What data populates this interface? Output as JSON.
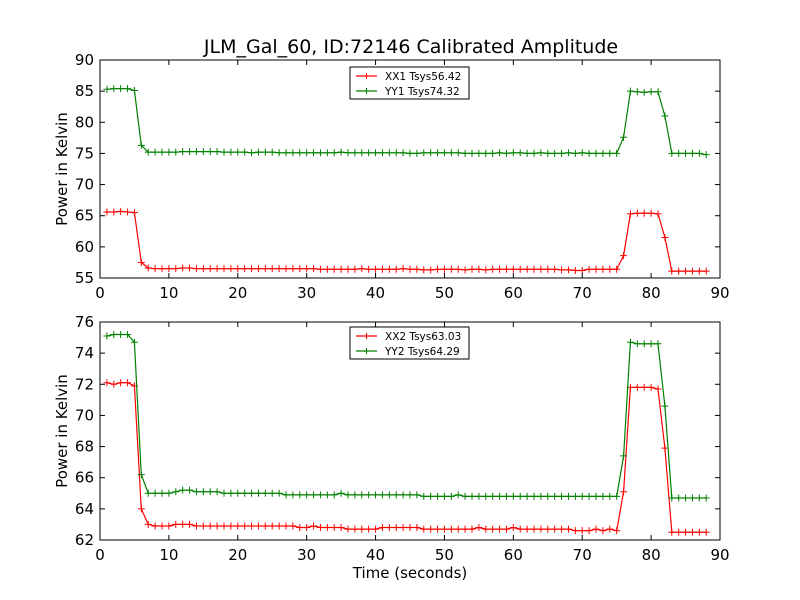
{
  "figure": {
    "title": "JLM_Gal_60, ID:72146 Calibrated Amplitude"
  },
  "chart_data": [
    {
      "type": "line",
      "title": "JLM_Gal_60, ID:72146 Calibrated Amplitude",
      "xlabel": "",
      "ylabel": "Power in Kelvin",
      "xlim": [
        0,
        90
      ],
      "ylim": [
        55,
        90
      ],
      "xticks": [
        0,
        10,
        20,
        30,
        40,
        50,
        60,
        70,
        80,
        90
      ],
      "yticks": [
        55,
        60,
        65,
        70,
        75,
        80,
        85,
        90
      ],
      "legend_position": "top-center",
      "grid": false,
      "x": [
        1,
        2,
        3,
        4,
        5,
        6,
        7,
        8,
        9,
        10,
        11,
        12,
        13,
        14,
        15,
        16,
        17,
        18,
        19,
        20,
        21,
        22,
        23,
        24,
        25,
        26,
        27,
        28,
        29,
        30,
        31,
        32,
        33,
        34,
        35,
        36,
        37,
        38,
        39,
        40,
        41,
        42,
        43,
        44,
        45,
        46,
        47,
        48,
        49,
        50,
        51,
        52,
        53,
        54,
        55,
        56,
        57,
        58,
        59,
        60,
        61,
        62,
        63,
        64,
        65,
        66,
        67,
        68,
        69,
        70,
        71,
        72,
        73,
        74,
        75,
        76,
        77,
        78,
        79,
        80,
        81,
        82,
        83,
        84,
        85,
        86,
        87,
        88
      ],
      "series": [
        {
          "name": "XX1 Tsys56.42",
          "color": "#ff0000",
          "values": [
            65.6,
            65.6,
            65.7,
            65.6,
            65.5,
            57.5,
            56.6,
            56.5,
            56.5,
            56.5,
            56.5,
            56.6,
            56.6,
            56.5,
            56.5,
            56.5,
            56.5,
            56.5,
            56.5,
            56.5,
            56.5,
            56.5,
            56.5,
            56.5,
            56.5,
            56.5,
            56.5,
            56.5,
            56.5,
            56.5,
            56.5,
            56.4,
            56.4,
            56.4,
            56.4,
            56.4,
            56.4,
            56.5,
            56.4,
            56.4,
            56.4,
            56.4,
            56.4,
            56.5,
            56.4,
            56.4,
            56.3,
            56.3,
            56.4,
            56.4,
            56.4,
            56.4,
            56.3,
            56.4,
            56.4,
            56.3,
            56.4,
            56.4,
            56.4,
            56.4,
            56.4,
            56.4,
            56.4,
            56.4,
            56.4,
            56.4,
            56.3,
            56.3,
            56.2,
            56.2,
            56.4,
            56.4,
            56.4,
            56.4,
            56.4,
            58.6,
            65.3,
            65.4,
            65.4,
            65.4,
            65.3,
            61.5,
            56.1,
            56.1,
            56.1,
            56.1,
            56.1,
            56.1
          ]
        },
        {
          "name": "YY1 Tsys74.32",
          "color": "#008000",
          "values": [
            85.3,
            85.4,
            85.4,
            85.4,
            85.1,
            76.3,
            75.2,
            75.2,
            75.2,
            75.2,
            75.2,
            75.3,
            75.3,
            75.3,
            75.3,
            75.3,
            75.3,
            75.2,
            75.2,
            75.2,
            75.2,
            75.1,
            75.2,
            75.2,
            75.2,
            75.1,
            75.1,
            75.1,
            75.1,
            75.1,
            75.1,
            75.1,
            75.1,
            75.1,
            75.2,
            75.1,
            75.1,
            75.1,
            75.1,
            75.1,
            75.1,
            75.1,
            75.1,
            75.1,
            75.0,
            75.0,
            75.1,
            75.1,
            75.1,
            75.1,
            75.1,
            75.1,
            75.0,
            75.0,
            75.0,
            75.0,
            75.0,
            75.1,
            75.0,
            75.1,
            75.1,
            75.0,
            75.0,
            75.1,
            75.0,
            75.0,
            75.0,
            75.1,
            75.0,
            75.1,
            75.0,
            75.0,
            75.0,
            75.0,
            75.0,
            77.6,
            85.0,
            84.9,
            84.8,
            84.9,
            84.9,
            81.0,
            75.0,
            75.0,
            75.0,
            75.0,
            75.0,
            74.8
          ]
        }
      ]
    },
    {
      "type": "line",
      "title": "",
      "xlabel": "Time (seconds)",
      "ylabel": "Power in Kelvin",
      "xlim": [
        0,
        90
      ],
      "ylim": [
        62,
        76
      ],
      "xticks": [
        0,
        10,
        20,
        30,
        40,
        50,
        60,
        70,
        80,
        90
      ],
      "yticks": [
        62,
        64,
        66,
        68,
        70,
        72,
        74,
        76
      ],
      "legend_position": "top-center",
      "grid": false,
      "x": [
        1,
        2,
        3,
        4,
        5,
        6,
        7,
        8,
        9,
        10,
        11,
        12,
        13,
        14,
        15,
        16,
        17,
        18,
        19,
        20,
        21,
        22,
        23,
        24,
        25,
        26,
        27,
        28,
        29,
        30,
        31,
        32,
        33,
        34,
        35,
        36,
        37,
        38,
        39,
        40,
        41,
        42,
        43,
        44,
        45,
        46,
        47,
        48,
        49,
        50,
        51,
        52,
        53,
        54,
        55,
        56,
        57,
        58,
        59,
        60,
        61,
        62,
        63,
        64,
        65,
        66,
        67,
        68,
        69,
        70,
        71,
        72,
        73,
        74,
        75,
        76,
        77,
        78,
        79,
        80,
        81,
        82,
        83,
        84,
        85,
        86,
        87,
        88
      ],
      "series": [
        {
          "name": "XX2 Tsys63.03",
          "color": "#ff0000",
          "values": [
            72.1,
            72.0,
            72.1,
            72.1,
            71.9,
            64.0,
            63.0,
            62.9,
            62.9,
            62.9,
            63.0,
            63.0,
            63.0,
            62.9,
            62.9,
            62.9,
            62.9,
            62.9,
            62.9,
            62.9,
            62.9,
            62.9,
            62.9,
            62.9,
            62.9,
            62.9,
            62.9,
            62.9,
            62.8,
            62.8,
            62.9,
            62.8,
            62.8,
            62.8,
            62.8,
            62.7,
            62.7,
            62.7,
            62.7,
            62.7,
            62.8,
            62.8,
            62.8,
            62.8,
            62.8,
            62.8,
            62.7,
            62.7,
            62.7,
            62.7,
            62.7,
            62.7,
            62.7,
            62.7,
            62.8,
            62.7,
            62.7,
            62.7,
            62.7,
            62.8,
            62.7,
            62.7,
            62.7,
            62.7,
            62.7,
            62.7,
            62.7,
            62.7,
            62.6,
            62.6,
            62.6,
            62.7,
            62.6,
            62.7,
            62.6,
            65.1,
            71.8,
            71.8,
            71.8,
            71.8,
            71.7,
            67.9,
            62.5,
            62.5,
            62.5,
            62.5,
            62.5,
            62.5
          ]
        },
        {
          "name": "YY2 Tsys64.29",
          "color": "#008000",
          "values": [
            75.1,
            75.2,
            75.2,
            75.2,
            74.7,
            66.2,
            65.0,
            65.0,
            65.0,
            65.0,
            65.1,
            65.2,
            65.2,
            65.1,
            65.1,
            65.1,
            65.1,
            65.0,
            65.0,
            65.0,
            65.0,
            65.0,
            65.0,
            65.0,
            65.0,
            65.0,
            64.9,
            64.9,
            64.9,
            64.9,
            64.9,
            64.9,
            64.9,
            64.9,
            65.0,
            64.9,
            64.9,
            64.9,
            64.9,
            64.9,
            64.9,
            64.9,
            64.9,
            64.9,
            64.9,
            64.9,
            64.8,
            64.8,
            64.8,
            64.8,
            64.8,
            64.9,
            64.8,
            64.8,
            64.8,
            64.8,
            64.8,
            64.8,
            64.8,
            64.8,
            64.8,
            64.8,
            64.8,
            64.8,
            64.8,
            64.8,
            64.8,
            64.8,
            64.8,
            64.8,
            64.8,
            64.8,
            64.8,
            64.8,
            64.8,
            67.4,
            74.7,
            74.6,
            74.6,
            74.6,
            74.6,
            70.6,
            64.7,
            64.7,
            64.7,
            64.7,
            64.7,
            64.7
          ]
        }
      ]
    }
  ]
}
